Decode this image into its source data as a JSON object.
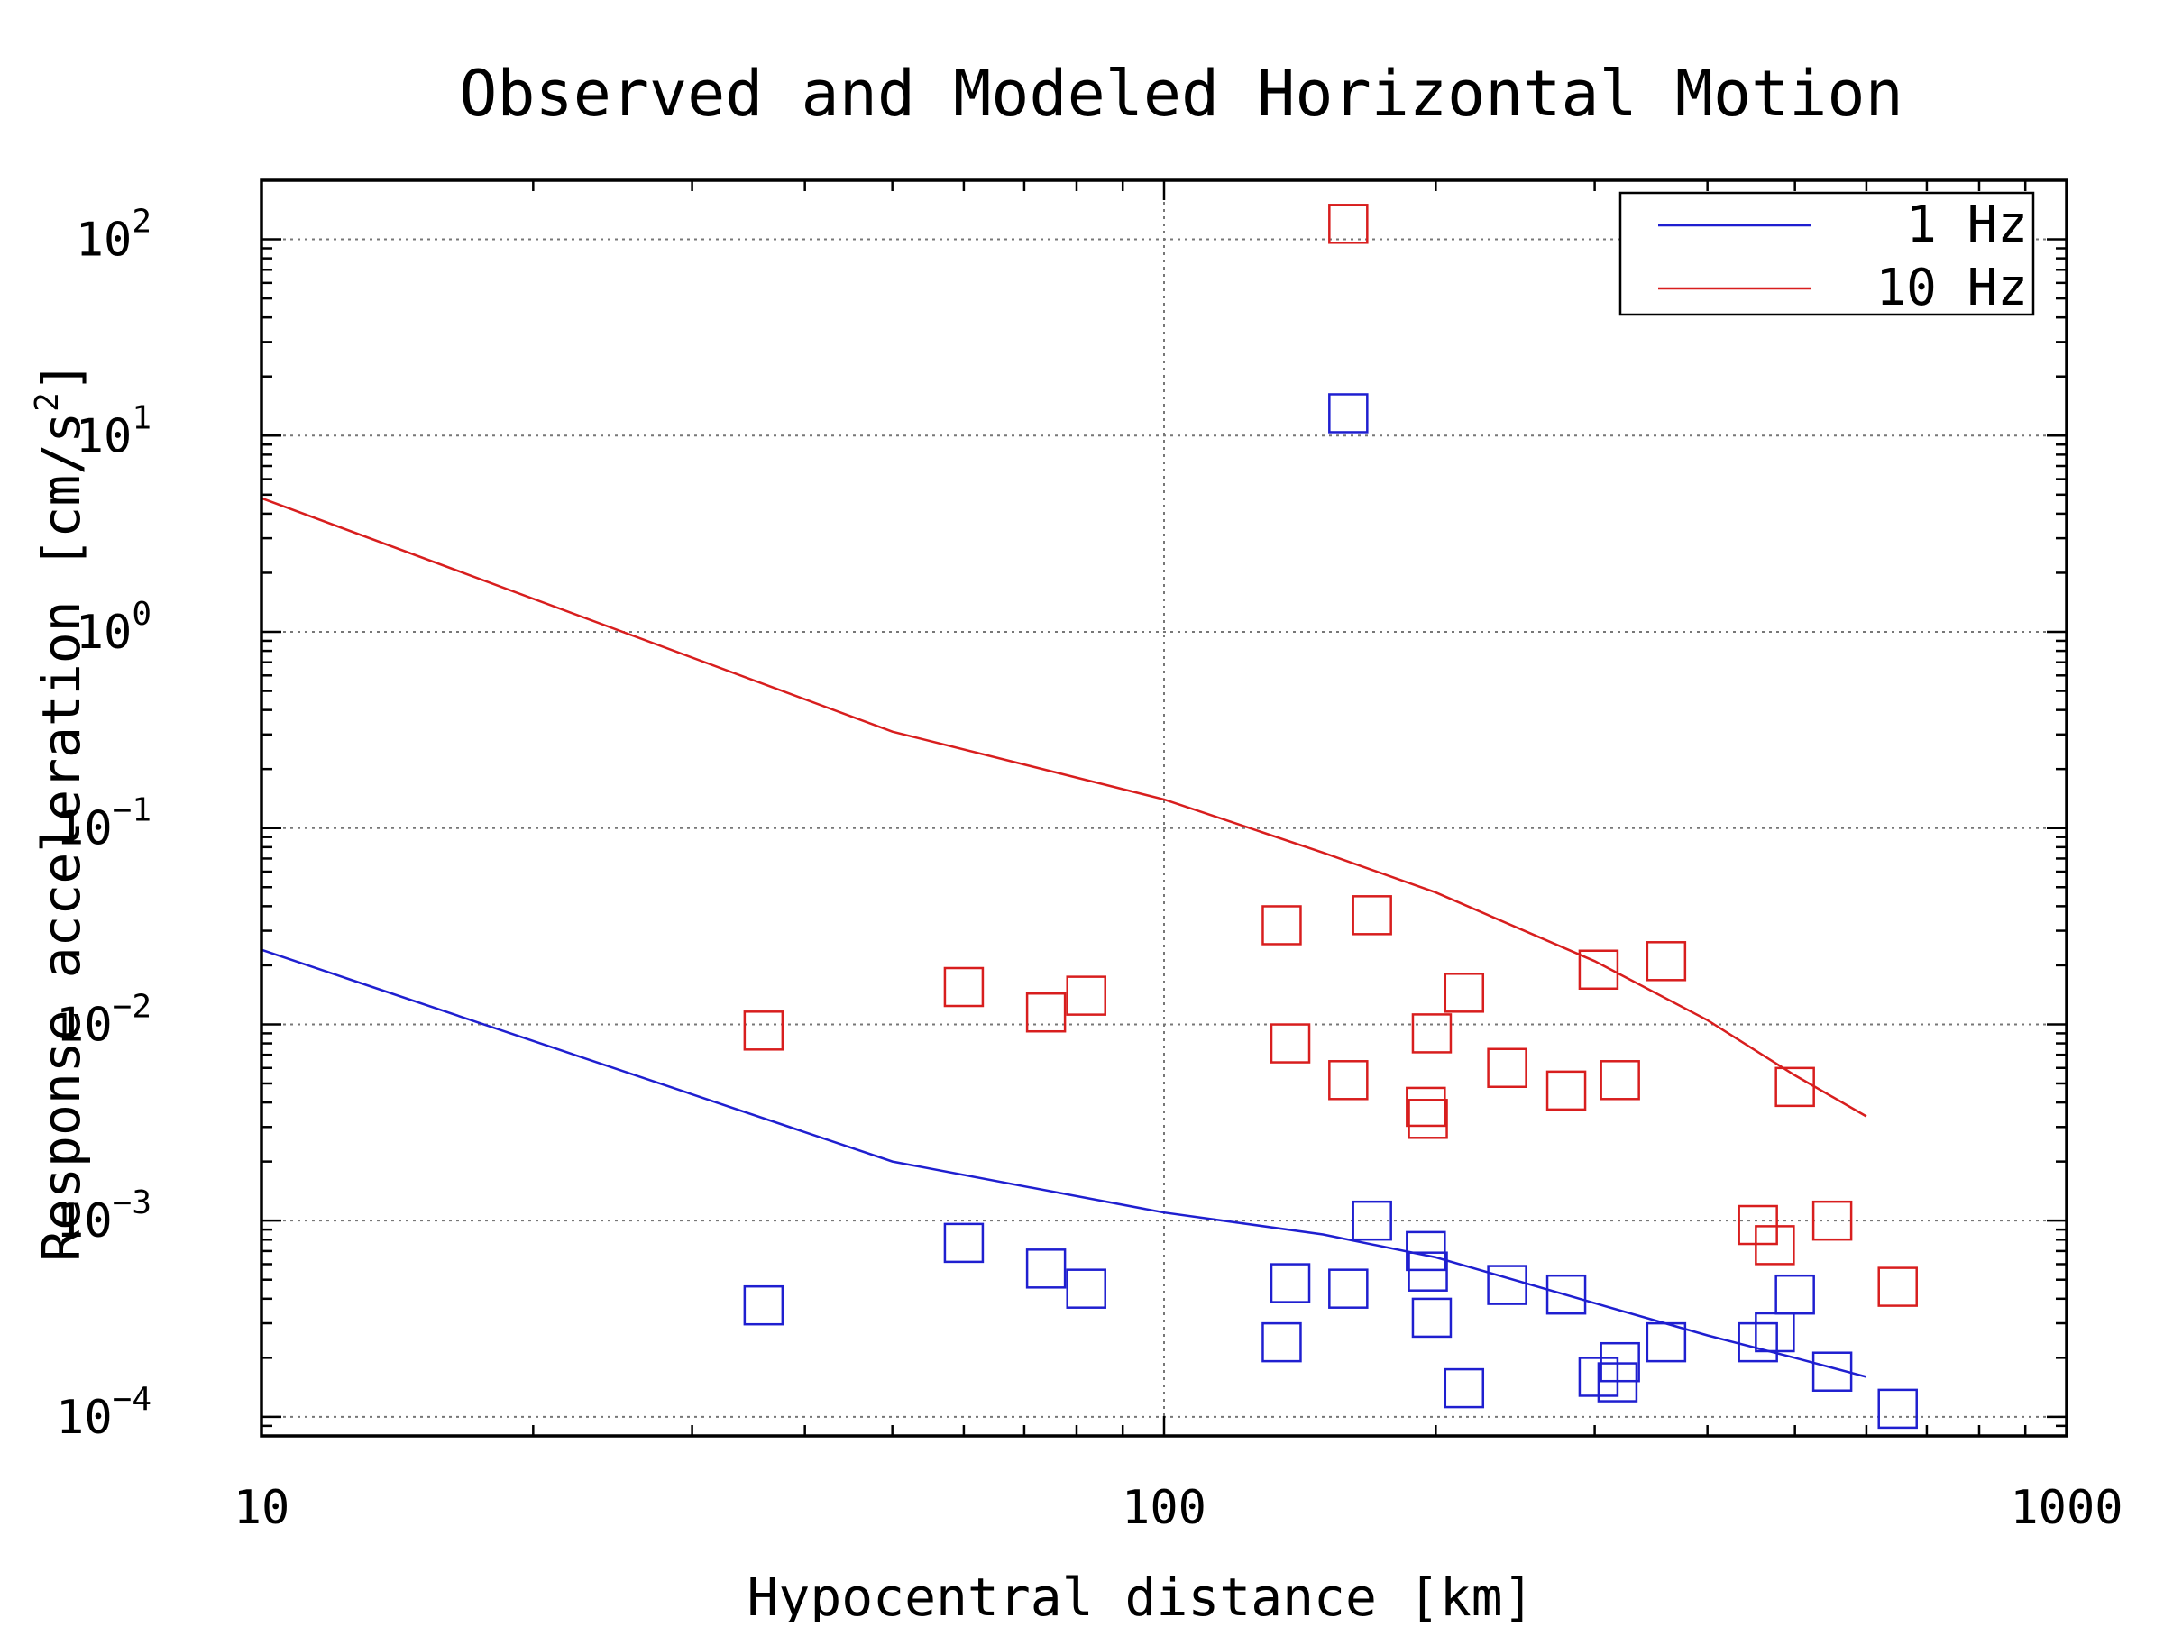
{
  "chart_data": {
    "type": "scatter",
    "title": "Observed and Modeled Horizontal Motion",
    "xlabel": "Hypocentral distance [km]",
    "ylabel": "Response acceleration [cm/s",
    "ylabel_sup": "2",
    "ylabel_suffix": "]",
    "x_scale": "log",
    "y_scale": "log",
    "xlim": [
      10,
      1000
    ],
    "ylim": [
      8e-05,
      200
    ],
    "x_ticks": [
      {
        "value": 10,
        "label": "10"
      },
      {
        "value": 100,
        "label": "100"
      },
      {
        "value": 1000,
        "label": "1000"
      }
    ],
    "y_ticks": [
      {
        "value": 0.0001,
        "base": "10",
        "exp": "−4"
      },
      {
        "value": 0.001,
        "base": "10",
        "exp": "−3"
      },
      {
        "value": 0.01,
        "base": "10",
        "exp": "−2"
      },
      {
        "value": 0.1,
        "base": "10",
        "exp": "−1"
      },
      {
        "value": 1,
        "base": "10",
        "exp": "0"
      },
      {
        "value": 10,
        "base": "10",
        "exp": "1"
      },
      {
        "value": 100,
        "base": "10",
        "exp": "2"
      }
    ],
    "grid": true,
    "legend_position": "top-right",
    "colors": {
      "blue": "#1f1fd0",
      "red": "#d81e1e",
      "grid": "#777777"
    },
    "series": [
      {
        "name": "1 Hz",
        "kind": "line",
        "color": "#1f1fd0",
        "x": [
          10,
          50,
          100,
          150,
          200,
          300,
          400,
          500,
          600
        ],
        "y": [
          0.024,
          0.002,
          0.0011,
          0.00085,
          0.00065,
          0.00038,
          0.00026,
          0.0002,
          0.00016
        ]
      },
      {
        "name": "10 Hz",
        "kind": "line",
        "color": "#d81e1e",
        "x": [
          10,
          50,
          100,
          150,
          200,
          300,
          400,
          500,
          600
        ],
        "y": [
          4.8,
          0.31,
          0.14,
          0.075,
          0.047,
          0.021,
          0.0105,
          0.0055,
          0.0034
        ]
      },
      {
        "name": "",
        "kind": "markers",
        "marker": "square",
        "color": "#d81e1e",
        "x": [
          36,
          60,
          74,
          82,
          135,
          138,
          160,
          170,
          195,
          196,
          198,
          215,
          240,
          279,
          303,
          320,
          360,
          455,
          475,
          500,
          550,
          650,
          160
        ],
        "y": [
          0.0093,
          0.0155,
          0.0115,
          0.014,
          0.032,
          0.008,
          0.0052,
          0.036,
          0.0038,
          0.0033,
          0.009,
          0.0145,
          0.006,
          0.0046,
          0.019,
          0.0052,
          0.021,
          0.00095,
          0.00075,
          0.0048,
          0.001,
          0.00046,
          120
        ]
      },
      {
        "name": "",
        "kind": "markers",
        "marker": "square",
        "color": "#1f1fd0",
        "x": [
          36,
          60,
          74,
          82,
          135,
          138,
          160,
          170,
          195,
          196,
          198,
          215,
          240,
          279,
          303,
          320,
          360,
          455,
          475,
          500,
          550,
          650,
          160,
          318
        ],
        "y": [
          0.00037,
          0.00077,
          0.00057,
          0.00045,
          0.00024,
          0.00048,
          0.00045,
          0.001,
          0.0007,
          0.00055,
          0.00032,
          0.00014,
          0.00047,
          0.00042,
          0.00016,
          0.00019,
          0.00024,
          0.00024,
          0.00027,
          0.00042,
          0.00017,
          0.00011,
          13,
          0.00015
        ]
      }
    ]
  }
}
